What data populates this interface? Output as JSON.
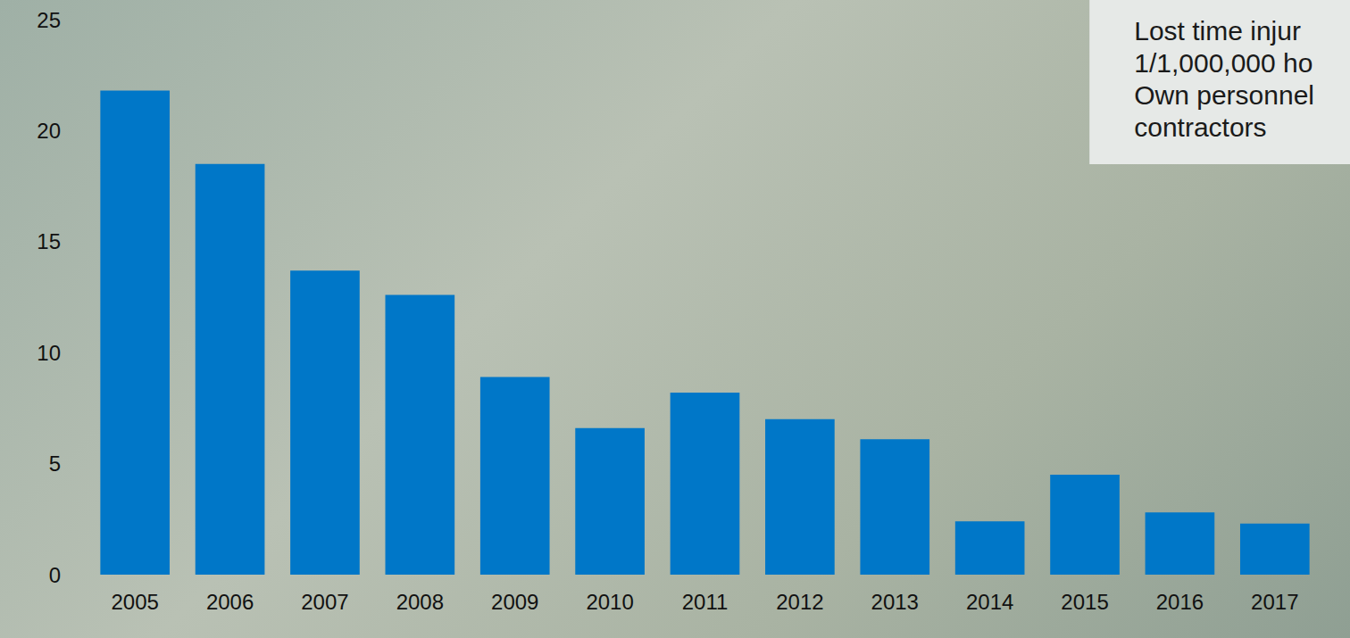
{
  "chart_data": {
    "type": "bar",
    "title": "Lost time injur\n1/1,000,000 ho\nOwn personnel\ncontractors",
    "categories": [
      "2005",
      "2006",
      "2007",
      "2008",
      "2009",
      "2010",
      "2011",
      "2012",
      "2013",
      "2014",
      "2015",
      "2016",
      "2017"
    ],
    "values": [
      21.8,
      18.5,
      13.7,
      12.6,
      8.9,
      6.6,
      8.2,
      7.0,
      6.1,
      2.4,
      4.5,
      2.8,
      2.3
    ],
    "color": "#0077c8",
    "ylim": [
      0,
      25
    ],
    "yticks": [
      0,
      5,
      10,
      15,
      20,
      25
    ],
    "grid": false
  }
}
